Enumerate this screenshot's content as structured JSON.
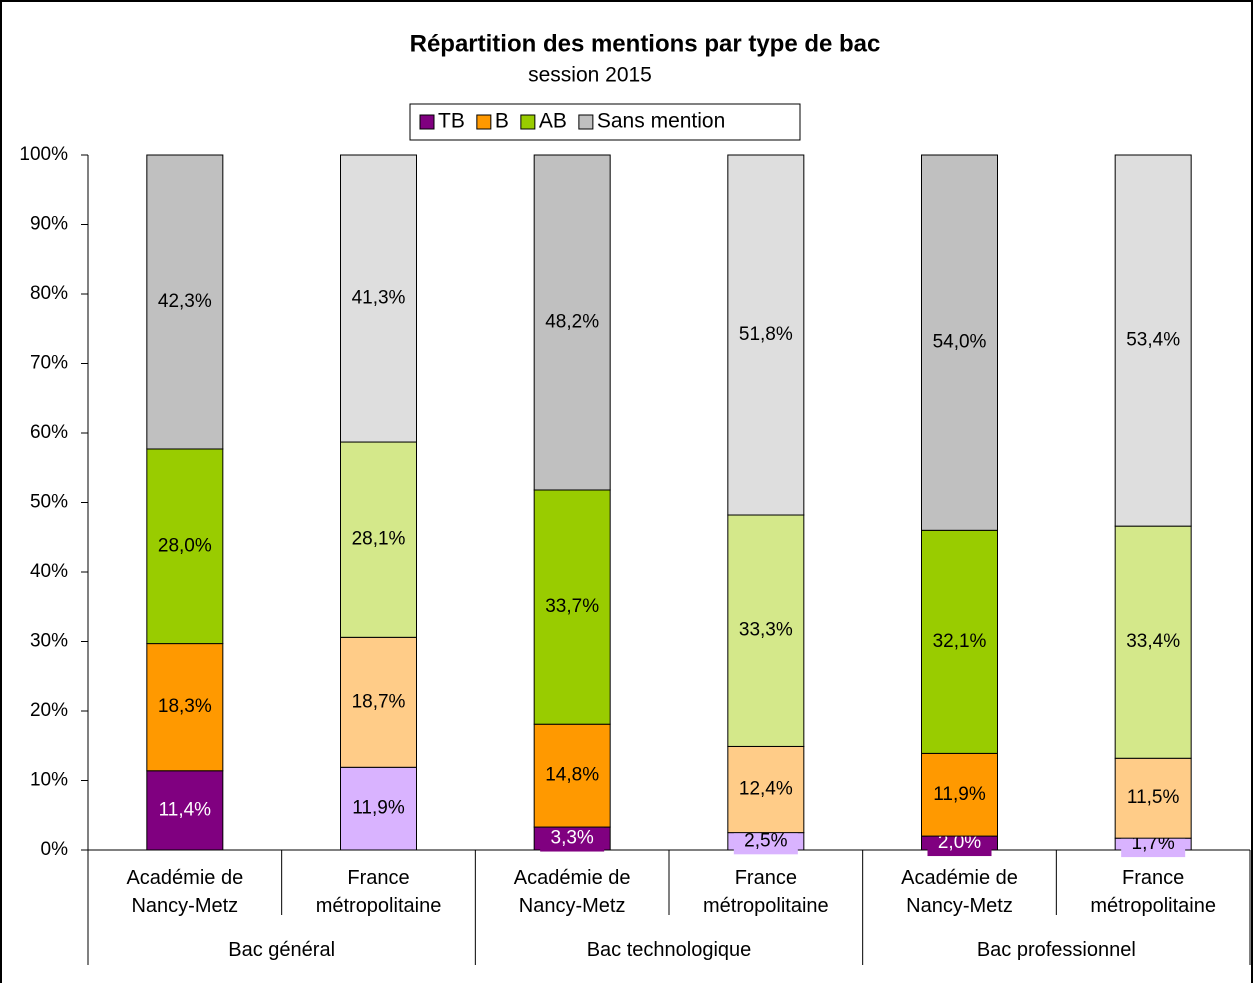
{
  "chart_data": {
    "type": "stacked-bar",
    "title": "Répartition des mentions par type de bac",
    "subtitle": "session 2015",
    "categories": [
      "Académie de Nancy-Metz",
      "France métropolitaine",
      "Académie de Nancy-Metz",
      "France métropolitaine",
      "Académie de Nancy-Metz",
      "France métropolitaine"
    ],
    "groups": [
      "Bac général",
      "Bac technologique",
      "Bac professionnel"
    ],
    "series": [
      {
        "name": "TB",
        "color": "#800080",
        "colors": [
          "#800080",
          "#d9b3ff",
          "#800080",
          "#d9b3ff",
          "#800080",
          "#d9b3ff"
        ],
        "values": [
          11.4,
          11.9,
          3.3,
          2.5,
          2.0,
          1.7
        ],
        "value_labels": [
          "11,4%",
          "11,9%",
          "3,3%",
          "2,5%",
          "2,0%",
          "1,7%"
        ]
      },
      {
        "name": "B",
        "color": "#ff9900",
        "colors": [
          "#ff9900",
          "#ffcc88",
          "#ff9900",
          "#ffcc88",
          "#ff9900",
          "#ffcc88"
        ],
        "values": [
          18.3,
          18.7,
          14.8,
          12.4,
          11.9,
          11.5
        ],
        "value_labels": [
          "18,3%",
          "18,7%",
          "14,8%",
          "12,4%",
          "11,9%",
          "11,5%"
        ]
      },
      {
        "name": "AB",
        "color": "#99cc00",
        "colors": [
          "#99cc00",
          "#d4e88a",
          "#99cc00",
          "#d4e88a",
          "#99cc00",
          "#d4e88a"
        ],
        "values": [
          28.0,
          28.1,
          33.7,
          33.3,
          32.1,
          33.4
        ],
        "value_labels": [
          "28,0%",
          "28,1%",
          "33,7%",
          "33,3%",
          "32,1%",
          "33,4%"
        ]
      },
      {
        "name": "Sans mention",
        "color": "#c0c0c0",
        "colors": [
          "#c0c0c0",
          "#dedede",
          "#c0c0c0",
          "#dedede",
          "#c0c0c0",
          "#dedede"
        ],
        "values": [
          42.3,
          41.3,
          48.2,
          51.8,
          54.0,
          53.4
        ],
        "value_labels": [
          "42,3%",
          "41,3%",
          "48,2%",
          "51,8%",
          "54,0%",
          "53,4%"
        ]
      }
    ],
    "ylim": [
      0,
      100
    ],
    "yticks": [
      {
        "value": 0,
        "label": "0%"
      },
      {
        "value": 10,
        "label": "10%"
      },
      {
        "value": 20,
        "label": "20%"
      },
      {
        "value": 30,
        "label": "30%"
      },
      {
        "value": 40,
        "label": "40%"
      },
      {
        "value": 50,
        "label": "50%"
      },
      {
        "value": 60,
        "label": "60%"
      },
      {
        "value": 70,
        "label": "70%"
      },
      {
        "value": 80,
        "label": "80%"
      },
      {
        "value": 90,
        "label": "90%"
      },
      {
        "value": 100,
        "label": "100%"
      }
    ],
    "legend": "top"
  }
}
